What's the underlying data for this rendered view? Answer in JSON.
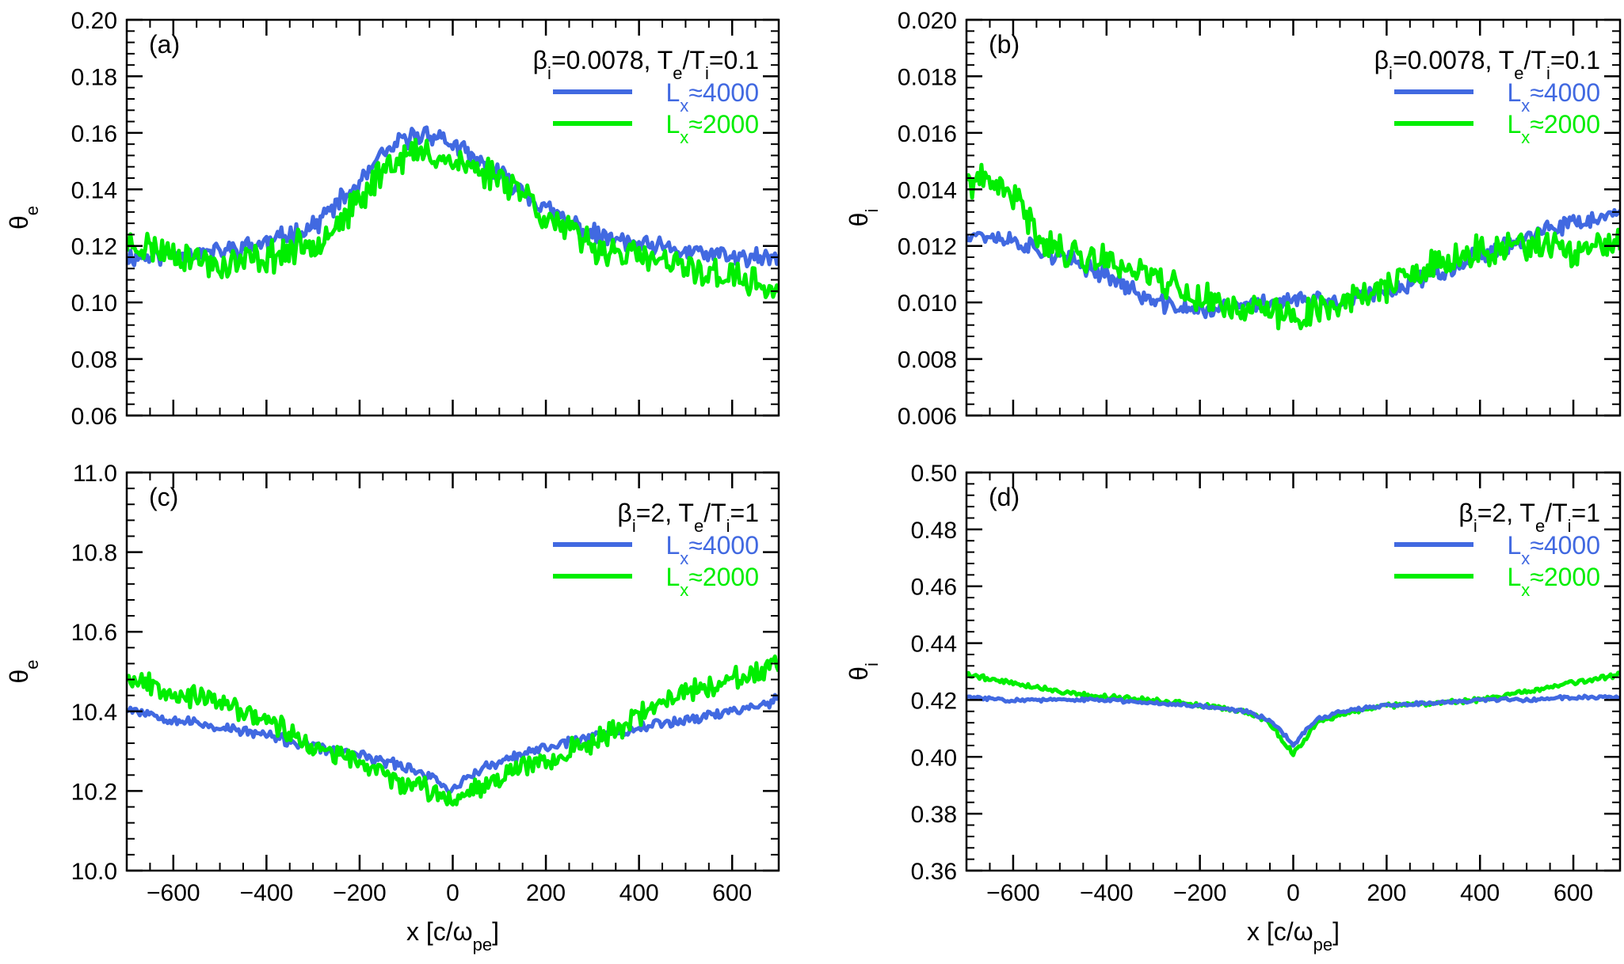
{
  "figure": {
    "colors": {
      "lx4000": "#4169e1",
      "lx2000": "#00ee00",
      "axis": "#000000"
    },
    "legend_labels": {
      "lx4000": "L",
      "lx4000_sub": "x",
      "lx4000_rest": "≈4000",
      "lx2000": "L",
      "lx2000_sub": "x",
      "lx2000_rest": "≈2000"
    },
    "x_axis_label": {
      "main": "x [c/ω",
      "sub": "pe",
      "tail": "]"
    }
  },
  "chart_data": [
    {
      "type": "line",
      "panel_label": "(a)",
      "params": {
        "beta": "β",
        "beta_sub": "i",
        "beta_val": "=0.0078, ",
        "te": "T",
        "te_sub": "e",
        "slash": "/T",
        "ti_sub": "i",
        "ratio": "=0.1"
      },
      "ylabel": {
        "sym": "θ",
        "sub": "e"
      },
      "xlim": [
        -700,
        700
      ],
      "ylim": [
        0.06,
        0.2
      ],
      "y_ticks": [
        "0.06",
        "0.08",
        "0.10",
        "0.12",
        "0.14",
        "0.16",
        "0.18",
        "0.20"
      ],
      "x_ticks": [
        "-600",
        "-400",
        "-200",
        "0",
        "200",
        "400",
        "600"
      ],
      "x_tick_labels": [
        "−600",
        "−400",
        "−200",
        "0",
        "200",
        "400",
        "600"
      ],
      "show_x_ticklabels": false,
      "series": [
        {
          "name": "Lx≈4000",
          "color_key": "lx4000",
          "noise": 0.0028,
          "seed": 11,
          "x": [
            -700,
            -600,
            -500,
            -400,
            -300,
            -200,
            -150,
            -100,
            -50,
            0,
            50,
            100,
            150,
            200,
            300,
            400,
            500,
            600,
            700
          ],
          "y": [
            0.116,
            0.117,
            0.118,
            0.121,
            0.127,
            0.142,
            0.152,
            0.158,
            0.16,
            0.156,
            0.15,
            0.145,
            0.14,
            0.133,
            0.124,
            0.12,
            0.118,
            0.116,
            0.115
          ]
        },
        {
          "name": "Lx≈2000",
          "color_key": "lx2000",
          "noise": 0.0045,
          "seed": 23,
          "x": [
            -700,
            -600,
            -500,
            -400,
            -300,
            -200,
            -150,
            -100,
            -50,
            0,
            50,
            100,
            150,
            200,
            300,
            400,
            500,
            600,
            700
          ],
          "y": [
            0.121,
            0.118,
            0.113,
            0.116,
            0.121,
            0.135,
            0.148,
            0.152,
            0.153,
            0.15,
            0.147,
            0.145,
            0.14,
            0.13,
            0.12,
            0.116,
            0.112,
            0.109,
            0.104
          ]
        }
      ]
    },
    {
      "type": "line",
      "panel_label": "(b)",
      "params": {
        "beta": "β",
        "beta_sub": "i",
        "beta_val": "=0.0078, ",
        "te": "T",
        "te_sub": "e",
        "slash": "/T",
        "ti_sub": "i",
        "ratio": "=0.1"
      },
      "ylabel": {
        "sym": "θ",
        "sub": "i"
      },
      "xlim": [
        -700,
        700
      ],
      "ylim": [
        0.006,
        0.02
      ],
      "y_ticks": [
        "0.006",
        "0.008",
        "0.010",
        "0.012",
        "0.014",
        "0.016",
        "0.018",
        "0.020"
      ],
      "x_ticks": [
        "-600",
        "-400",
        "-200",
        "0",
        "200",
        "400",
        "600"
      ],
      "x_tick_labels": [
        "−600",
        "−400",
        "−200",
        "0",
        "200",
        "400",
        "600"
      ],
      "show_x_ticklabels": false,
      "series": [
        {
          "name": "Lx≈4000",
          "color_key": "lx4000",
          "noise": 0.00025,
          "seed": 37,
          "x": [
            -700,
            -600,
            -500,
            -400,
            -300,
            -200,
            -100,
            0,
            100,
            200,
            300,
            400,
            500,
            600,
            700
          ],
          "y": [
            0.0125,
            0.0122,
            0.0116,
            0.011,
            0.01,
            0.0097,
            0.0099,
            0.0101,
            0.01,
            0.0104,
            0.011,
            0.0117,
            0.0123,
            0.0128,
            0.0131
          ]
        },
        {
          "name": "Lx≈2000",
          "color_key": "lx2000",
          "noise": 0.00045,
          "seed": 41,
          "x": [
            -700,
            -650,
            -600,
            -550,
            -500,
            -400,
            -300,
            -200,
            -100,
            0,
            100,
            200,
            300,
            400,
            500,
            600,
            700
          ],
          "y": [
            0.0143,
            0.0142,
            0.0138,
            0.0125,
            0.0118,
            0.0115,
            0.011,
            0.0101,
            0.0098,
            0.0095,
            0.01,
            0.0106,
            0.0112,
            0.0118,
            0.012,
            0.0118,
            0.012
          ]
        }
      ]
    },
    {
      "type": "line",
      "panel_label": "(c)",
      "params": {
        "beta": "β",
        "beta_sub": "i",
        "beta_val": "=2, ",
        "te": "T",
        "te_sub": "e",
        "slash": "/T",
        "ti_sub": "i",
        "ratio": "=1"
      },
      "ylabel": {
        "sym": "θ",
        "sub": "e"
      },
      "xlim": [
        -700,
        700
      ],
      "ylim": [
        10.0,
        11.0
      ],
      "y_ticks": [
        "10.0",
        "10.2",
        "10.4",
        "10.6",
        "10.8",
        "11.0"
      ],
      "x_ticks": [
        "-600",
        "-400",
        "-200",
        "0",
        "200",
        "400",
        "600"
      ],
      "x_tick_labels": [
        "−600",
        "−400",
        "−200",
        "0",
        "200",
        "400",
        "600"
      ],
      "show_x_ticklabels": true,
      "series": [
        {
          "name": "Lx≈4000",
          "color_key": "lx4000",
          "noise": 0.011,
          "seed": 53,
          "x": [
            -700,
            -600,
            -500,
            -400,
            -300,
            -200,
            -100,
            -50,
            0,
            50,
            100,
            200,
            300,
            400,
            500,
            600,
            700
          ],
          "y": [
            10.41,
            10.38,
            10.36,
            10.34,
            10.31,
            10.29,
            10.26,
            10.24,
            10.2,
            10.25,
            10.27,
            10.31,
            10.34,
            10.36,
            10.38,
            10.4,
            10.43
          ]
        },
        {
          "name": "Lx≈2000",
          "color_key": "lx2000",
          "noise": 0.022,
          "seed": 67,
          "x": [
            -700,
            -600,
            -500,
            -400,
            -300,
            -200,
            -100,
            0,
            100,
            200,
            300,
            400,
            500,
            600,
            700
          ],
          "y": [
            10.49,
            10.45,
            10.42,
            10.38,
            10.31,
            10.27,
            10.22,
            10.18,
            10.24,
            10.28,
            10.32,
            10.39,
            10.45,
            10.48,
            10.51
          ]
        }
      ]
    },
    {
      "type": "line",
      "panel_label": "(d)",
      "params": {
        "beta": "β",
        "beta_sub": "i",
        "beta_val": "=2, ",
        "te": "T",
        "te_sub": "e",
        "slash": "/T",
        "ti_sub": "i",
        "ratio": "=1"
      },
      "ylabel": {
        "sym": "θ",
        "sub": "i"
      },
      "xlim": [
        -700,
        700
      ],
      "ylim": [
        0.36,
        0.5
      ],
      "y_ticks": [
        "0.36",
        "0.38",
        "0.40",
        "0.42",
        "0.44",
        "0.46",
        "0.48",
        "0.50"
      ],
      "x_ticks": [
        "-600",
        "-400",
        "-200",
        "0",
        "200",
        "400",
        "600"
      ],
      "x_tick_labels": [
        "−600",
        "−400",
        "−200",
        "0",
        "200",
        "400",
        "600"
      ],
      "show_x_ticklabels": true,
      "series": [
        {
          "name": "Lx≈2000",
          "color_key": "lx2000",
          "noise": 0.0007,
          "seed": 79,
          "x": [
            -700,
            -600,
            -500,
            -400,
            -300,
            -200,
            -100,
            -50,
            -20,
            0,
            20,
            50,
            100,
            200,
            300,
            400,
            500,
            600,
            700
          ],
          "y": [
            0.429,
            0.426,
            0.423,
            0.421,
            0.42,
            0.418,
            0.416,
            0.412,
            0.405,
            0.401,
            0.405,
            0.412,
            0.415,
            0.418,
            0.419,
            0.42,
            0.423,
            0.426,
            0.429
          ]
        },
        {
          "name": "Lx≈4000",
          "color_key": "lx4000",
          "noise": 0.0005,
          "seed": 83,
          "x": [
            -700,
            -600,
            -500,
            -400,
            -300,
            -200,
            -100,
            -50,
            -20,
            0,
            20,
            50,
            100,
            200,
            300,
            400,
            500,
            600,
            700
          ],
          "y": [
            0.421,
            0.42,
            0.42,
            0.42,
            0.419,
            0.418,
            0.416,
            0.413,
            0.408,
            0.404,
            0.408,
            0.413,
            0.416,
            0.418,
            0.419,
            0.42,
            0.42,
            0.421,
            0.421
          ]
        }
      ]
    }
  ]
}
